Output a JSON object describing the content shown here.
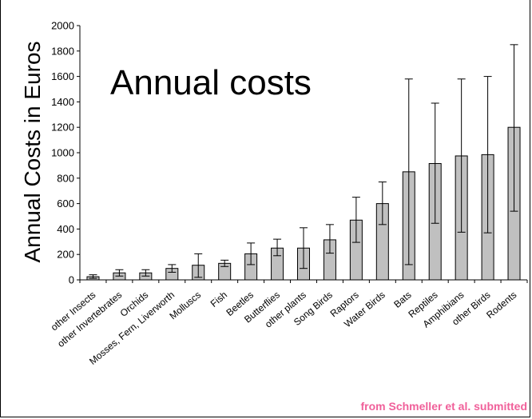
{
  "chart_data": {
    "type": "bar",
    "title": "Annual costs",
    "xlabel": "",
    "ylabel": "Annual Costs in Euros",
    "ylim": [
      0,
      2000
    ],
    "yticks": [
      0,
      200,
      400,
      600,
      800,
      1000,
      1200,
      1400,
      1600,
      1800,
      2000
    ],
    "grid": false,
    "categories": [
      "other Insects",
      "other Invertebrates",
      "Orchids",
      "Mosses, Fern, Liverworth",
      "Molluscs",
      "Fish",
      "Beetles",
      "Butterflies",
      "other plants",
      "Song Birds",
      "Raptors",
      "Water Birds",
      "Bats",
      "Reptiles",
      "Amphibians",
      "other Birds",
      "Rodents"
    ],
    "values": [
      25,
      55,
      55,
      90,
      115,
      130,
      205,
      250,
      250,
      315,
      470,
      600,
      850,
      915,
      975,
      985,
      1200
    ],
    "error_low": [
      12,
      30,
      30,
      60,
      20,
      105,
      120,
      190,
      90,
      210,
      295,
      435,
      120,
      445,
      375,
      370,
      540
    ],
    "error_high": [
      40,
      80,
      80,
      120,
      205,
      155,
      290,
      320,
      410,
      435,
      650,
      770,
      1580,
      1390,
      1580,
      1600,
      1850
    ],
    "bar_color": "#c0c0c0"
  },
  "source_note": "from Schmeller et al. submitted"
}
